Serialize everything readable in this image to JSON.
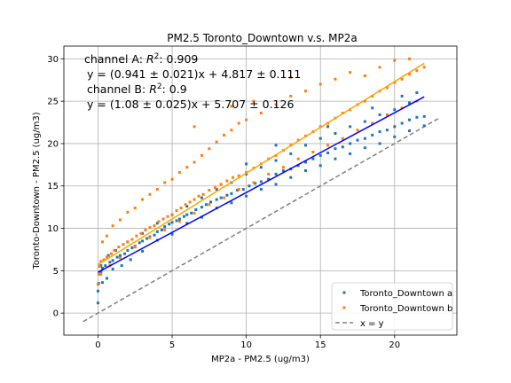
{
  "chart_data": {
    "type": "scatter",
    "title": "PM2.5 Toronto_Downtown v.s. MP2a",
    "xlabel": "MP2a - PM2.5 (ug/m3)",
    "ylabel": "Toronto-Downtown - PM2.5 (ug/m3)",
    "xlim": [
      -2.3,
      24.2
    ],
    "ylim": [
      -2.6,
      31.5
    ],
    "xticks": [
      0,
      5,
      10,
      15,
      20
    ],
    "yticks": [
      0,
      5,
      10,
      15,
      20,
      25,
      30
    ],
    "grid": true,
    "legend_position": "lower right",
    "annotations": {
      "a_r2_prefix": "channel A: ",
      "a_r2_value": ": 0.909",
      "a_eq": "y = (0.941 ± 0.021)x + 4.817 ± 0.111",
      "b_r2_prefix": "channel B: ",
      "b_r2_value": ": 0.9",
      "b_eq": "y = (1.08 ± 0.025)x + 5.707 ± 0.126",
      "r2_symbol": "R",
      "r2_superscript": "2"
    },
    "series": [
      {
        "name": "Toronto_Downtown a",
        "kind": "points",
        "color": "#1f77b4",
        "fit": {
          "slope": 0.941,
          "intercept": 4.817,
          "x_range": [
            0,
            22
          ],
          "color": "#0000ff"
        },
        "points": [
          [
            0,
            1.2
          ],
          [
            0,
            2.6
          ],
          [
            0.05,
            3.5
          ],
          [
            0.1,
            4.6
          ],
          [
            0.2,
            4.9
          ],
          [
            0.3,
            5.3
          ],
          [
            0.5,
            5.6
          ],
          [
            0.8,
            6.0
          ],
          [
            1.0,
            6.2
          ],
          [
            1.3,
            6.6
          ],
          [
            1.5,
            6.8
          ],
          [
            1.8,
            7.0
          ],
          [
            2.0,
            7.4
          ],
          [
            2.3,
            7.7
          ],
          [
            2.5,
            7.9
          ],
          [
            2.8,
            8.3
          ],
          [
            3.0,
            8.5
          ],
          [
            3.3,
            8.8
          ],
          [
            3.5,
            9.0
          ],
          [
            3.8,
            9.2
          ],
          [
            4.0,
            9.6
          ],
          [
            4.3,
            9.8
          ],
          [
            4.5,
            10.2
          ],
          [
            4.8,
            10.5
          ],
          [
            5.0,
            10.7
          ],
          [
            5.3,
            10.9
          ],
          [
            5.5,
            11.1
          ],
          [
            5.8,
            11.4
          ],
          [
            6.0,
            11.6
          ],
          [
            6.3,
            11.8
          ],
          [
            6.6,
            12.2
          ],
          [
            7.0,
            12.5
          ],
          [
            7.3,
            12.8
          ],
          [
            7.6,
            13.1
          ],
          [
            8.0,
            13.4
          ],
          [
            8.3,
            13.6
          ],
          [
            8.7,
            13.9
          ],
          [
            9.0,
            14.1
          ],
          [
            9.4,
            14.5
          ],
          [
            9.8,
            14.6
          ],
          [
            10.2,
            15.0
          ],
          [
            10.6,
            15.3
          ],
          [
            11.0,
            15.5
          ],
          [
            11.5,
            15.8
          ],
          [
            12.0,
            16.4
          ],
          [
            12.5,
            16.8
          ],
          [
            13.0,
            17.0
          ],
          [
            13.5,
            17.4
          ],
          [
            14.0,
            17.8
          ],
          [
            14.5,
            18.2
          ],
          [
            15.0,
            18.6
          ],
          [
            15.5,
            18.9
          ],
          [
            16.0,
            19.4
          ],
          [
            16.5,
            19.6
          ],
          [
            17.0,
            20.0
          ],
          [
            17.5,
            20.4
          ],
          [
            18.0,
            20.6
          ],
          [
            18.5,
            21.0
          ],
          [
            19.0,
            21.4
          ],
          [
            19.5,
            21.6
          ],
          [
            20.0,
            22.0
          ],
          [
            20.5,
            22.4
          ],
          [
            21.0,
            22.8
          ],
          [
            21.5,
            23.1
          ],
          [
            22.0,
            23.2
          ],
          [
            0.3,
            3.6
          ],
          [
            0.6,
            4.1
          ],
          [
            1.0,
            5.2
          ],
          [
            1.6,
            5.6
          ],
          [
            2.2,
            6.3
          ],
          [
            3.0,
            7.3
          ],
          [
            4.0,
            8.6
          ],
          [
            5.0,
            9.3
          ],
          [
            6.0,
            10.6
          ],
          [
            7.0,
            11.3
          ],
          [
            8.0,
            12.4
          ],
          [
            9.0,
            13.0
          ],
          [
            10.0,
            13.8
          ],
          [
            11.0,
            14.6
          ],
          [
            12.0,
            15.2
          ],
          [
            13.0,
            16.0
          ],
          [
            14.0,
            16.8
          ],
          [
            15.0,
            17.4
          ],
          [
            16.0,
            18.2
          ],
          [
            17.0,
            18.8
          ],
          [
            18.0,
            19.5
          ],
          [
            19.0,
            20.0
          ],
          [
            20.0,
            20.8
          ],
          [
            21.0,
            21.5
          ],
          [
            22.0,
            22.1
          ],
          [
            0.2,
            5.6
          ],
          [
            0.7,
            6.8
          ],
          [
            1.2,
            7.4
          ],
          [
            2.0,
            8.4
          ],
          [
            3.0,
            9.4
          ],
          [
            4.0,
            10.6
          ],
          [
            5.0,
            11.6
          ],
          [
            6.0,
            12.6
          ],
          [
            7.0,
            13.6
          ],
          [
            8.0,
            14.6
          ],
          [
            9.0,
            15.4
          ],
          [
            10.0,
            16.4
          ],
          [
            11.0,
            17.2
          ],
          [
            12.0,
            18.0
          ],
          [
            13.0,
            18.8
          ],
          [
            14.0,
            19.8
          ],
          [
            15.0,
            20.6
          ],
          [
            16.0,
            21.2
          ],
          [
            17.0,
            22.0
          ],
          [
            18.0,
            22.6
          ],
          [
            19.0,
            23.4
          ],
          [
            20.0,
            24.0
          ],
          [
            21.0,
            24.8
          ],
          [
            10.0,
            17.6
          ],
          [
            12.0,
            19.8
          ],
          [
            15.5,
            22.0
          ],
          [
            18.5,
            24.2
          ],
          [
            20.5,
            25.6
          ],
          [
            21.5,
            26.0
          ]
        ]
      },
      {
        "name": "Toronto_Downtown b",
        "kind": "points",
        "color": "#ff7f0e",
        "fit": {
          "slope": 1.08,
          "intercept": 5.707,
          "x_range": [
            0,
            22
          ],
          "color": "#ffa500"
        },
        "points": [
          [
            0,
            3.4
          ],
          [
            0.05,
            4.6
          ],
          [
            0.1,
            5.5
          ],
          [
            0.2,
            6.1
          ],
          [
            0.4,
            6.3
          ],
          [
            0.6,
            6.6
          ],
          [
            0.9,
            7.0
          ],
          [
            1.1,
            7.4
          ],
          [
            1.4,
            7.8
          ],
          [
            1.7,
            8.1
          ],
          [
            2.0,
            8.4
          ],
          [
            2.3,
            8.7
          ],
          [
            2.6,
            9.1
          ],
          [
            2.9,
            9.4
          ],
          [
            3.2,
            9.8
          ],
          [
            3.5,
            10.1
          ],
          [
            3.8,
            10.3
          ],
          [
            4.1,
            10.8
          ],
          [
            4.4,
            11.1
          ],
          [
            4.7,
            11.4
          ],
          [
            5.0,
            11.6
          ],
          [
            5.3,
            12.1
          ],
          [
            5.6,
            12.4
          ],
          [
            5.9,
            12.8
          ],
          [
            6.2,
            13.1
          ],
          [
            6.5,
            13.4
          ],
          [
            6.8,
            13.8
          ],
          [
            7.1,
            14.0
          ],
          [
            7.5,
            14.5
          ],
          [
            7.9,
            14.8
          ],
          [
            8.3,
            15.2
          ],
          [
            8.7,
            15.6
          ],
          [
            9.1,
            16.0
          ],
          [
            9.5,
            16.2
          ],
          [
            10.0,
            16.6
          ],
          [
            10.5,
            17.1
          ],
          [
            11.0,
            17.6
          ],
          [
            11.5,
            18.2
          ],
          [
            12.0,
            18.6
          ],
          [
            12.5,
            19.2
          ],
          [
            13.0,
            19.8
          ],
          [
            13.5,
            20.4
          ],
          [
            14.0,
            20.9
          ],
          [
            14.5,
            21.4
          ],
          [
            15.0,
            22.0
          ],
          [
            15.5,
            22.4
          ],
          [
            16.0,
            23.0
          ],
          [
            16.5,
            23.6
          ],
          [
            17.0,
            24.0
          ],
          [
            17.5,
            24.6
          ],
          [
            18.0,
            25.0
          ],
          [
            18.5,
            25.6
          ],
          [
            19.0,
            26.2
          ],
          [
            19.5,
            26.6
          ],
          [
            20.0,
            27.2
          ],
          [
            20.5,
            27.6
          ],
          [
            21.0,
            28.2
          ],
          [
            21.5,
            28.6
          ],
          [
            22.0,
            29.0
          ],
          [
            0.3,
            8.4
          ],
          [
            0.6,
            9.1
          ],
          [
            1.0,
            10.3
          ],
          [
            1.5,
            11.0
          ],
          [
            2.0,
            11.9
          ],
          [
            2.5,
            12.4
          ],
          [
            3.0,
            13.4
          ],
          [
            3.5,
            14.0
          ],
          [
            4.0,
            14.6
          ],
          [
            4.5,
            15.4
          ],
          [
            5.0,
            15.8
          ],
          [
            5.5,
            16.6
          ],
          [
            6.0,
            17.2
          ],
          [
            6.5,
            17.8
          ],
          [
            7.0,
            18.6
          ],
          [
            7.5,
            19.4
          ],
          [
            8.0,
            20.2
          ],
          [
            8.5,
            21.0
          ],
          [
            9.0,
            21.6
          ],
          [
            9.5,
            22.4
          ],
          [
            10.0,
            22.8
          ],
          [
            11.0,
            23.6
          ],
          [
            12.0,
            24.6
          ],
          [
            13.0,
            25.6
          ],
          [
            14.0,
            26.2
          ],
          [
            15.0,
            27.0
          ],
          [
            16.0,
            27.6
          ],
          [
            17.0,
            28.4
          ],
          [
            18.0,
            28.0
          ],
          [
            19.0,
            29.0
          ],
          [
            20.0,
            29.8
          ],
          [
            21.0,
            30.0
          ],
          [
            0.2,
            4.6
          ],
          [
            0.8,
            5.6
          ],
          [
            1.5,
            6.5
          ],
          [
            2.5,
            7.8
          ],
          [
            3.5,
            8.9
          ],
          [
            4.5,
            9.8
          ],
          [
            5.5,
            10.8
          ],
          [
            6.5,
            11.8
          ],
          [
            7.5,
            12.8
          ],
          [
            8.5,
            13.6
          ],
          [
            9.5,
            14.6
          ],
          [
            10.5,
            15.4
          ],
          [
            11.5,
            16.4
          ],
          [
            12.5,
            17.2
          ],
          [
            13.5,
            18.2
          ],
          [
            14.5,
            19.0
          ],
          [
            15.5,
            19.8
          ],
          [
            16.5,
            20.6
          ],
          [
            17.5,
            21.6
          ],
          [
            18.5,
            22.4
          ],
          [
            19.5,
            23.4
          ],
          [
            20.5,
            24.2
          ],
          [
            21.5,
            25.0
          ],
          [
            6.5,
            22.0
          ],
          [
            9.0,
            24.4
          ],
          [
            10.5,
            25.0
          ],
          [
            13.0,
            27.8
          ]
        ]
      },
      {
        "name": "x = y",
        "kind": "line",
        "color": "#808080",
        "dash": "dashed",
        "x_range": [
          -1,
          23
        ]
      }
    ]
  }
}
